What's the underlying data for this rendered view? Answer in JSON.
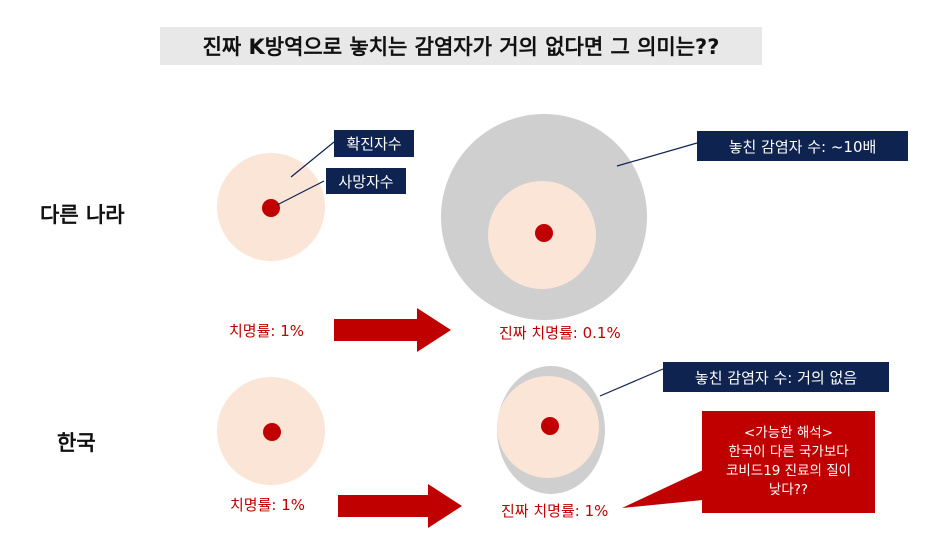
{
  "title": "진짜 K방역으로 놓치는 감염자가 거의 없다면 그 의미는??",
  "rows": {
    "other": {
      "label": "다른 나라",
      "cfr_observed": "치명률: 1%",
      "cfr_true": "진짜 치명률: 0.1%",
      "missed_label": "놓친 감염자 수: ~10배"
    },
    "korea": {
      "label": "한국",
      "cfr_observed": "치명률: 1%",
      "cfr_true": "진짜 치명률: 1%",
      "missed_label": "놓친 감염자 수: 거의 없음"
    }
  },
  "legend": {
    "confirmed": "확진자수",
    "deaths": "사망자수"
  },
  "callout": {
    "heading": "<가능한 해석>",
    "lines": [
      "한국이 다른 국가보다",
      "코비드19 진료의 질이",
      "낮다??"
    ]
  },
  "colors": {
    "confirmed_circle": "#fbe5d6",
    "death_dot": "#c00000",
    "missed_circle": "#d0cfcf",
    "label_box": "#0f2350",
    "arrow": "#c00000"
  }
}
